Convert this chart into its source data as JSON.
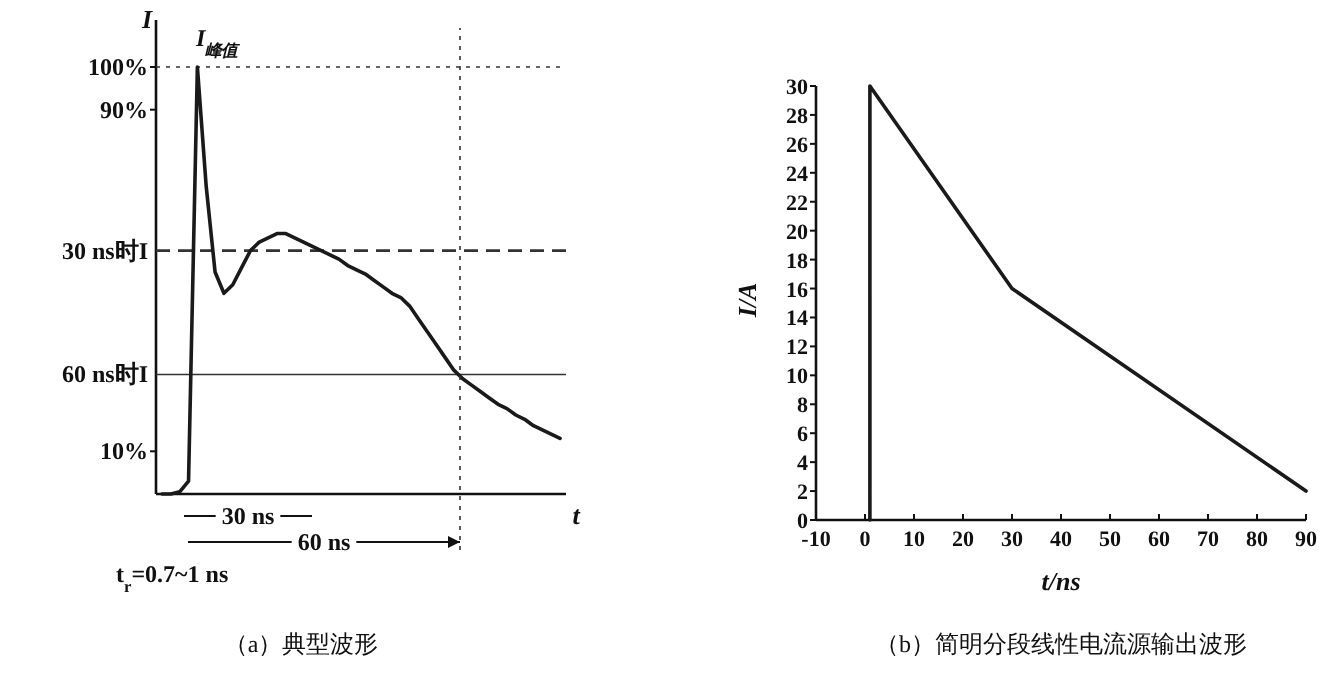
{
  "chart_data": [
    {
      "type": "line",
      "title": "（a）典型波形",
      "xlabel": "t",
      "ylabel": "I",
      "color": "#1a1a1a",
      "categories": [
        null,
        null,
        null,
        null,
        null,
        null,
        null,
        null,
        null,
        null,
        null,
        null,
        null,
        null,
        null,
        null,
        null,
        null,
        null,
        null,
        null,
        null,
        null,
        null,
        null,
        null,
        null,
        null,
        null,
        null,
        null,
        null,
        null,
        null,
        null,
        null,
        null,
        null,
        null,
        null,
        null,
        null,
        null,
        null,
        null,
        null
      ],
      "values": [
        0,
        0,
        0.5,
        3,
        100,
        72,
        52,
        47,
        49,
        53,
        57,
        59,
        60,
        61,
        61,
        60,
        59,
        58,
        57,
        56,
        55,
        53.5,
        52.5,
        51.5,
        50,
        48.5,
        47,
        46,
        44,
        41,
        38,
        35,
        32,
        29,
        27,
        25.5,
        24,
        22.5,
        21,
        20,
        18.5,
        17.5,
        16,
        15,
        14,
        13
      ],
      "ylim": [
        0,
        111
      ],
      "yticks": [
        {
          "value": 100,
          "label": "100%"
        },
        {
          "value": 90,
          "label": "90%"
        },
        {
          "value": 10,
          "label": "10%"
        }
      ],
      "ref_lines": [
        {
          "axis": "y",
          "value": 100,
          "line_style": "dotted"
        },
        {
          "axis": "y",
          "value": 57,
          "line_style": "dashed",
          "label": "30 ns时I"
        },
        {
          "axis": "y",
          "value": 28,
          "line_style": "solid",
          "label": "60 ns时I"
        }
      ],
      "annotations": [
        "I$_{峰值}$",
        "30 ns",
        "60 ns",
        "t$_{r}$=0.7~1 ns"
      ]
    },
    {
      "type": "line",
      "title": "（b）简明分段线性电流源输出波形",
      "xlabel": "t/ns",
      "ylabel": "I/A",
      "color": "#1a1a1a",
      "x": [
        1,
        1,
        30,
        90
      ],
      "values": [
        0,
        30,
        16,
        2
      ],
      "xlim": [
        -10,
        90
      ],
      "ylim": [
        0,
        30
      ],
      "xticks": [
        -10,
        0,
        10,
        20,
        30,
        40,
        50,
        60,
        70,
        80,
        90
      ],
      "yticks": [
        0,
        2,
        4,
        6,
        8,
        10,
        12,
        14,
        16,
        18,
        20,
        22,
        24,
        26,
        28,
        30
      ]
    }
  ]
}
